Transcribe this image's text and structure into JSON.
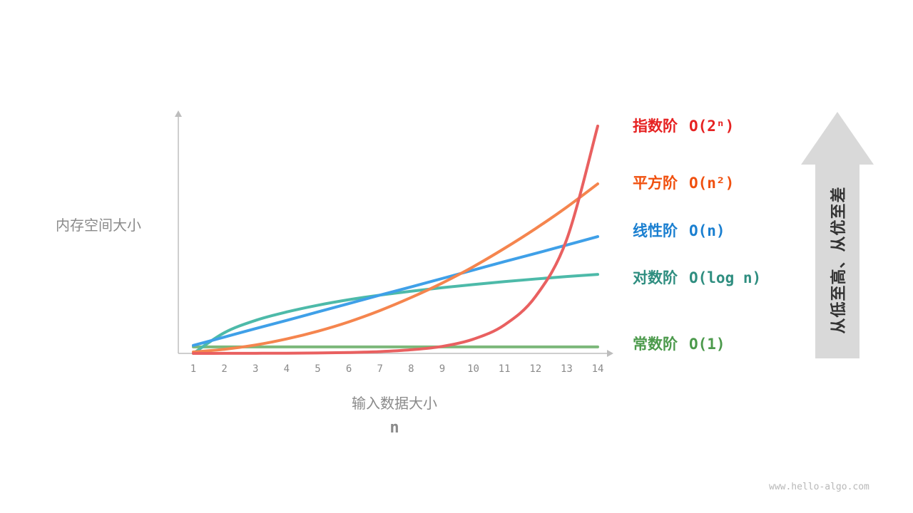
{
  "chart_data": {
    "type": "line",
    "title": "",
    "xlabel": "输入数据大小",
    "xvar": "n",
    "ylabel": "内存空间大小",
    "x": [
      1,
      2,
      3,
      4,
      5,
      6,
      7,
      8,
      9,
      10,
      11,
      12,
      13,
      14
    ],
    "xlim": [
      1,
      14
    ],
    "ylim": [
      0,
      100
    ],
    "grid": false,
    "legend_placement": "right",
    "series": [
      {
        "name": "常数阶",
        "notation": "O(1)",
        "line_color": "#7cb87a",
        "label_color": "#4c9a4c",
        "values": [
          2.7,
          2.7,
          2.7,
          2.7,
          2.7,
          2.7,
          2.7,
          2.7,
          2.7,
          2.7,
          2.7,
          2.7,
          2.7,
          2.7
        ]
      },
      {
        "name": "对数阶",
        "notation": "O(log n)",
        "line_color": "#4dbaa9",
        "label_color": "#2f8e80",
        "values": [
          0,
          8.6,
          13.7,
          17.2,
          20.0,
          22.3,
          24.2,
          25.8,
          27.3,
          28.6,
          29.8,
          30.9,
          31.9,
          32.8
        ]
      },
      {
        "name": "线性阶",
        "notation": "O(n)",
        "line_color": "#3fa0e8",
        "label_color": "#1a7fd0",
        "values": [
          3.3,
          6.8,
          10.3,
          13.7,
          17.2,
          20.7,
          24.2,
          27.6,
          31.1,
          34.6,
          38.1,
          41.5,
          45.0,
          48.5
        ]
      },
      {
        "name": "平方阶",
        "notation": "O(n²)",
        "line_color": "#f5854e",
        "label_color": "#f0500f",
        "values": [
          0.6,
          1.7,
          3.5,
          6.0,
          9.2,
          13.1,
          17.8,
          23.2,
          29.2,
          36.0,
          43.6,
          51.8,
          60.7,
          70.4
        ]
      },
      {
        "name": "指数阶",
        "notation": "O(2ⁿ)",
        "line_color": "#e96060",
        "label_color": "#e62222",
        "values": [
          0.01,
          0.02,
          0.05,
          0.09,
          0.18,
          0.37,
          0.74,
          1.5,
          2.9,
          5.9,
          11.8,
          23.6,
          47.2,
          94.4
        ]
      }
    ]
  },
  "arrow_text": "从低至高、从优至差",
  "arrow_color": "#d9d9d9",
  "watermark": "www.hello-algo.com"
}
